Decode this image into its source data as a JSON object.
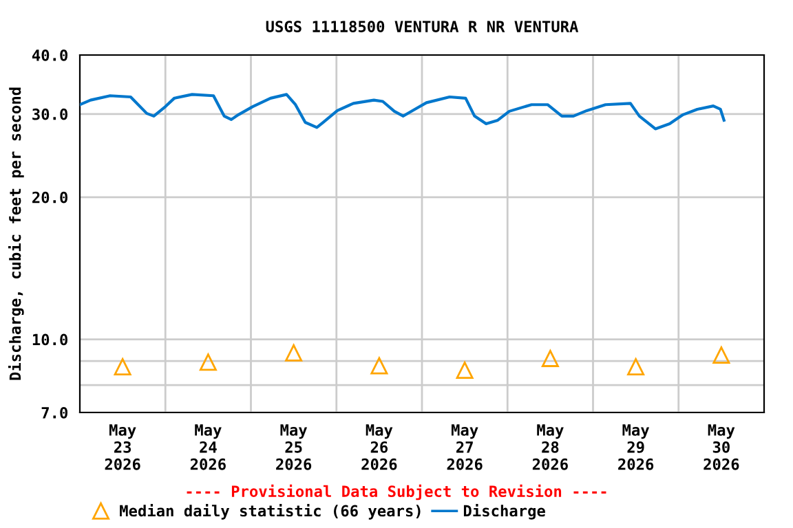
{
  "chart_data": {
    "type": "line",
    "title": "USGS 11118500 VENTURA R NR VENTURA",
    "ylabel": "Discharge, cubic feet per second",
    "annotations": [
      "---- Provisional Data Subject to Revision ----"
    ],
    "log": "y",
    "grid": true,
    "legend": "bottom",
    "xlim": [
      "2026-05-23T00:00",
      "2026-05-31T00:00"
    ],
    "xticks": [
      {
        "value": "2026-05-23T12:00",
        "label": "May\n23\n2026"
      },
      {
        "value": "2026-05-24T12:00",
        "label": "May\n24\n2026"
      },
      {
        "value": "2026-05-25T12:00",
        "label": "May\n25\n2026"
      },
      {
        "value": "2026-05-26T12:00",
        "label": "May\n26\n2026"
      },
      {
        "value": "2026-05-27T12:00",
        "label": "May\n27\n2026"
      },
      {
        "value": "2026-05-28T12:00",
        "label": "May\n28\n2026"
      },
      {
        "value": "2026-05-29T12:00",
        "label": "May\n29\n2026"
      },
      {
        "value": "2026-05-30T12:00",
        "label": "May\n30\n2026"
      },
      {
        "value": "2026-05-24T00:00",
        "label": null
      },
      {
        "value": "2026-05-25T00:00",
        "label": null
      },
      {
        "value": "2026-05-26T00:00",
        "label": null
      },
      {
        "value": "2026-05-27T00:00",
        "label": null
      },
      {
        "value": "2026-05-28T00:00",
        "label": null
      },
      {
        "value": "2026-05-29T00:00",
        "label": null
      },
      {
        "value": "2026-05-30T00:00",
        "label": null
      }
    ],
    "ylim": [
      7,
      40
    ],
    "yticks": [
      {
        "value": 7,
        "label": "7.0"
      },
      {
        "value": 8,
        "label": null
      },
      {
        "value": 9,
        "label": null
      },
      {
        "value": 10,
        "label": "10.0"
      },
      {
        "value": 20,
        "label": "20.0"
      },
      {
        "value": 30,
        "label": "30.0"
      },
      {
        "value": 40,
        "label": "40.0"
      }
    ],
    "series": [
      {
        "name": "Median daily statistic (66 years)",
        "type": "scatter",
        "marker": "triangle",
        "color": "#ffa500",
        "x": [
          "2026-05-23T12:00",
          "2026-05-24T12:00",
          "2026-05-25T12:00",
          "2026-05-26T12:00",
          "2026-05-27T12:00",
          "2026-05-28T12:00",
          "2026-05-29T12:00",
          "2026-05-30T12:00"
        ],
        "values": [
          8.75,
          8.95,
          9.36,
          8.79,
          8.6,
          9.11,
          8.75,
          9.26
        ]
      },
      {
        "name": "Discharge",
        "color": "#0077cc",
        "x": [
          "2026-05-23T00:00",
          "2026-05-23T03:00",
          "2026-05-23T08:30",
          "2026-05-23T14:15",
          "2026-05-23T18:45",
          "2026-05-23T20:45",
          "2026-05-24T00:00",
          "2026-05-24T02:30",
          "2026-05-24T07:30",
          "2026-05-24T13:30",
          "2026-05-24T16:30",
          "2026-05-24T18:30",
          "2026-05-24T20:30",
          "2026-05-25T00:30",
          "2026-05-25T05:30",
          "2026-05-25T10:00",
          "2026-05-25T12:30",
          "2026-05-25T15:15",
          "2026-05-25T18:30",
          "2026-05-25T20:15",
          "2026-05-26T00:15",
          "2026-05-26T04:45",
          "2026-05-26T10:30",
          "2026-05-26T13:00",
          "2026-05-26T16:15",
          "2026-05-26T18:45",
          "2026-05-26T22:00",
          "2026-05-27T01:15",
          "2026-05-27T07:45",
          "2026-05-27T12:15",
          "2026-05-27T14:45",
          "2026-05-27T18:00",
          "2026-05-27T21:15",
          "2026-05-28T00:30",
          "2026-05-28T06:45",
          "2026-05-28T11:15",
          "2026-05-28T15:15",
          "2026-05-28T18:30",
          "2026-05-28T22:15",
          "2026-05-29T03:30",
          "2026-05-29T10:30",
          "2026-05-29T13:00",
          "2026-05-29T17:30",
          "2026-05-29T21:30",
          "2026-05-30T01:15",
          "2026-05-30T05:15",
          "2026-05-30T09:45",
          "2026-05-30T11:45",
          "2026-05-30T12:45"
        ],
        "values": [
          31.4,
          32.1,
          32.8,
          32.6,
          30.1,
          29.7,
          31.1,
          32.4,
          33.0,
          32.8,
          29.7,
          29.2,
          29.9,
          31.1,
          32.4,
          33.0,
          31.4,
          28.8,
          28.1,
          28.8,
          30.5,
          31.6,
          32.1,
          31.9,
          30.4,
          29.7,
          30.7,
          31.7,
          32.6,
          32.4,
          29.7,
          28.6,
          29.1,
          30.4,
          31.4,
          31.4,
          29.7,
          29.7,
          30.5,
          31.4,
          31.6,
          29.7,
          27.9,
          28.6,
          29.9,
          30.7,
          31.2,
          30.7,
          29.1
        ]
      }
    ]
  }
}
